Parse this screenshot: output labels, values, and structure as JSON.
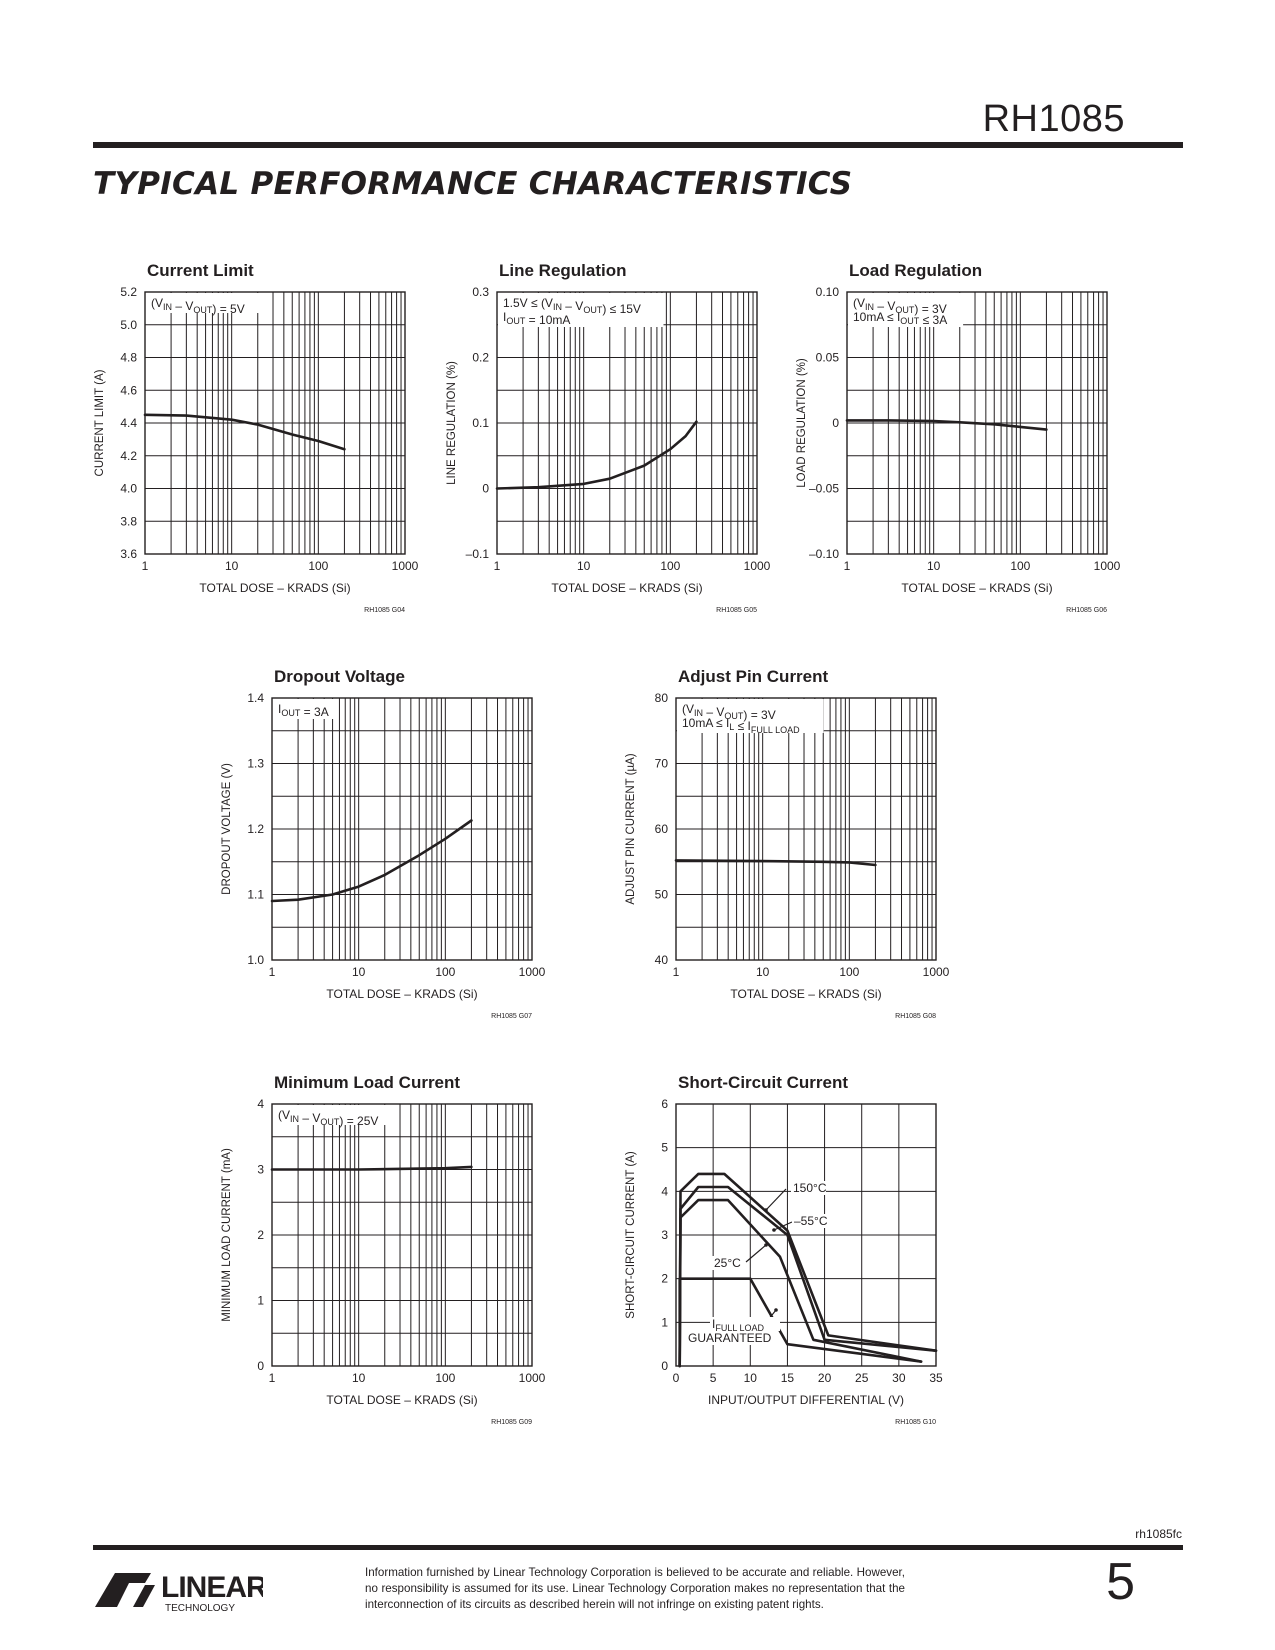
{
  "header": {
    "part_number": "RH1085"
  },
  "section_title": "TYPICAL PERFORMANCE CHARACTERISTICS",
  "footer": {
    "doc_id": "rh1085fc",
    "disclaimer": "Information furnished by Linear Technology Corporation is believed to be accurate and reliable. However, no responsibility is assumed for its use. Linear Technology Corporation makes no representation that the interconnection of its circuits as described herein will not infringe on existing patent rights.",
    "page_number": "5",
    "logo_text": "LINEAR",
    "logo_sub": "TECHNOLOGY"
  },
  "chart_data": [
    {
      "id": "g04",
      "type": "line",
      "title": "Current Limit",
      "xlabel": "TOTAL DOSE – KRADS (Si)",
      "ylabel": "CURRENT LIMIT (A)",
      "xscale": "log",
      "xlim": [
        1,
        1000
      ],
      "ylim": [
        3.6,
        5.2
      ],
      "yticks": [
        "3.6",
        "3.8",
        "4.0",
        "4.2",
        "4.4",
        "4.6",
        "4.8",
        "5.0",
        "5.2"
      ],
      "xticks": [
        "1",
        "10",
        "100",
        "1000"
      ],
      "annotation": [
        "(VIN – VOUT) = 5V"
      ],
      "series": [
        {
          "x": [
            1,
            3,
            10,
            20,
            50,
            100,
            200
          ],
          "y": [
            4.45,
            4.445,
            4.42,
            4.39,
            4.33,
            4.29,
            4.24
          ]
        }
      ],
      "figure_id": "RH1085 G04"
    },
    {
      "id": "g05",
      "type": "line",
      "title": "Line Regulation",
      "xlabel": "TOTAL DOSE – KRADS (Si)",
      "ylabel": "LINE REGULATION (%)",
      "xscale": "log",
      "xlim": [
        1,
        1000
      ],
      "ylim": [
        -0.1,
        0.3
      ],
      "yticks": [
        "–0.1",
        "0",
        "0.1",
        "0.2",
        "0.3"
      ],
      "xticks": [
        "1",
        "10",
        "100",
        "1000"
      ],
      "annotation": [
        "1.5V ≤ (VIN – VOUT) ≤ 15V",
        "IOUT = 10mA"
      ],
      "series": [
        {
          "x": [
            1,
            3,
            10,
            20,
            50,
            100,
            150,
            200
          ],
          "y": [
            0.0,
            0.002,
            0.007,
            0.015,
            0.035,
            0.06,
            0.08,
            0.102
          ]
        }
      ],
      "figure_id": "RH1085 G05"
    },
    {
      "id": "g06",
      "type": "line",
      "title": "Load Regulation",
      "xlabel": "TOTAL DOSE – KRADS (Si)",
      "ylabel": "LOAD REGULATION (%)",
      "xscale": "log",
      "xlim": [
        1,
        1000
      ],
      "ylim": [
        -0.1,
        0.1
      ],
      "yticks": [
        "–0.10",
        "–0.05",
        "0",
        "0.05",
        "0.10"
      ],
      "xticks": [
        "1",
        "10",
        "100",
        "1000"
      ],
      "annotation": [
        "(VIN – VOUT) = 3V",
        "10mA ≤ IOUT ≤ 3A"
      ],
      "series": [
        {
          "x": [
            1,
            3,
            10,
            20,
            50,
            100,
            200
          ],
          "y": [
            0.002,
            0.002,
            0.0015,
            0.0005,
            -0.001,
            -0.003,
            -0.005
          ]
        }
      ],
      "figure_id": "RH1085 G06"
    },
    {
      "id": "g07",
      "type": "line",
      "title": "Dropout Voltage",
      "xlabel": "TOTAL DOSE – KRADS (Si)",
      "ylabel": "DROPOUT VOLTAGE (V)",
      "xscale": "log",
      "xlim": [
        1,
        1000
      ],
      "ylim": [
        1.0,
        1.4
      ],
      "yticks": [
        "1.0",
        "1.1",
        "1.2",
        "1.3",
        "1.4"
      ],
      "xticks": [
        "1",
        "10",
        "100",
        "1000"
      ],
      "annotation": [
        "IOUT = 3A"
      ],
      "series": [
        {
          "x": [
            1,
            2,
            5,
            10,
            20,
            50,
            100,
            200
          ],
          "y": [
            1.09,
            1.092,
            1.1,
            1.112,
            1.13,
            1.16,
            1.185,
            1.213
          ]
        }
      ],
      "figure_id": "RH1085 G07"
    },
    {
      "id": "g08",
      "type": "line",
      "title": "Adjust Pin Current",
      "xlabel": "TOTAL DOSE – KRADS (Si)",
      "ylabel": "ADJUST PIN CURRENT (µA)",
      "xscale": "log",
      "xlim": [
        1,
        1000
      ],
      "ylim": [
        40,
        80
      ],
      "yticks": [
        "40",
        "50",
        "60",
        "70",
        "80"
      ],
      "xticks": [
        "1",
        "10",
        "100",
        "1000"
      ],
      "annotation": [
        "(VIN – VOUT) = 3V",
        "10mA ≤ IL ≤ IFULL LOAD"
      ],
      "series": [
        {
          "x": [
            1,
            10,
            50,
            100,
            200
          ],
          "y": [
            55.2,
            55.1,
            55.0,
            54.9,
            54.5
          ]
        }
      ],
      "figure_id": "RH1085 G08"
    },
    {
      "id": "g09",
      "type": "line",
      "title": "Minimum Load Current",
      "xlabel": "TOTAL DOSE – KRADS (Si)",
      "ylabel": "MINIMUM LOAD CURRENT (mA)",
      "xscale": "log",
      "xlim": [
        1,
        1000
      ],
      "ylim": [
        0,
        4
      ],
      "yticks": [
        "0",
        "1",
        "2",
        "3",
        "4"
      ],
      "xticks": [
        "1",
        "10",
        "100",
        "1000"
      ],
      "annotation": [
        "(VIN – VOUT) = 25V"
      ],
      "series": [
        {
          "x": [
            1,
            10,
            100,
            200
          ],
          "y": [
            3.0,
            3.0,
            3.02,
            3.04
          ]
        }
      ],
      "figure_id": "RH1085 G09"
    },
    {
      "id": "g10",
      "type": "line",
      "title": "Short-Circuit Current",
      "xlabel": "INPUT/OUTPUT DIFFERENTIAL (V)",
      "ylabel": "SHORT-CIRCUIT CURRENT (A)",
      "xscale": "linear",
      "xlim": [
        0,
        35
      ],
      "ylim": [
        0,
        6
      ],
      "yticks": [
        "0",
        "1",
        "2",
        "3",
        "4",
        "5",
        "6"
      ],
      "xticks": [
        "0",
        "5",
        "10",
        "15",
        "20",
        "25",
        "30",
        "35"
      ],
      "series": [
        {
          "name": "150°C",
          "x": [
            0.5,
            0.6,
            3,
            6.5,
            15,
            20.5,
            35
          ],
          "y": [
            0,
            4.0,
            4.4,
            4.4,
            3.1,
            0.7,
            0.35
          ]
        },
        {
          "name": "–55°C",
          "x": [
            0.5,
            0.6,
            3,
            7,
            15,
            20,
            35
          ],
          "y": [
            0,
            3.6,
            4.1,
            4.1,
            3.0,
            0.6,
            0.35
          ]
        },
        {
          "name": "25°C",
          "x": [
            0.5,
            0.6,
            3,
            7,
            14,
            18.5,
            33
          ],
          "y": [
            0,
            3.4,
            3.8,
            3.8,
            2.5,
            0.6,
            0.1
          ]
        },
        {
          "name": "IFULL LOAD GUARANTEED",
          "x": [
            0.5,
            0.5,
            10,
            15,
            33
          ],
          "y": [
            0,
            2.0,
            2.0,
            0.5,
            0.1
          ]
        }
      ],
      "callouts": [
        "150°C",
        "–55°C",
        "25°C",
        "IFULL LOAD",
        "GUARANTEED"
      ],
      "figure_id": "RH1085 G10"
    }
  ]
}
